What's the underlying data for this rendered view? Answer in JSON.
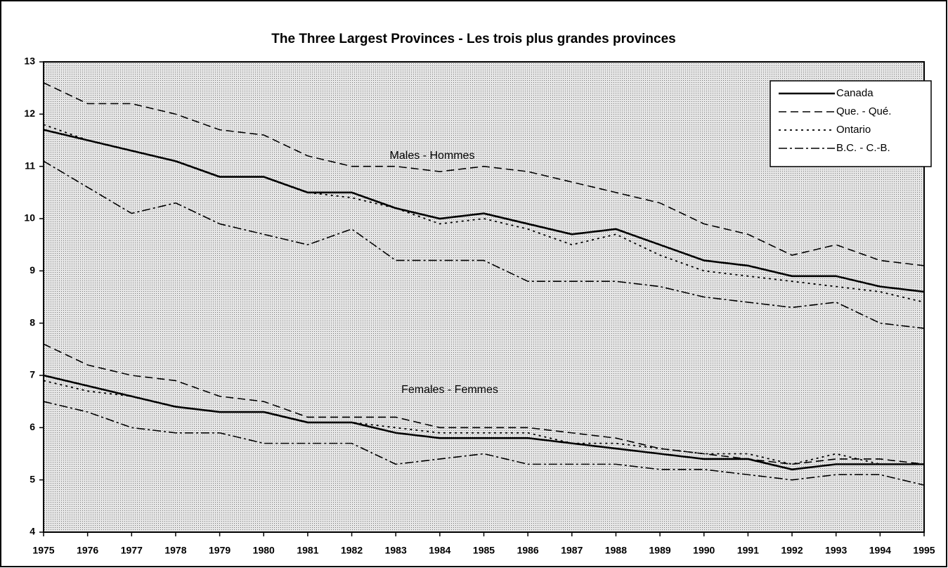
{
  "chart_data": {
    "type": "line",
    "title": "The Three Largest Provinces - Les trois plus grandes provinces",
    "annotations": [
      "Males - Hommes",
      "Females - Femmes"
    ],
    "x": [
      1975,
      1976,
      1977,
      1978,
      1979,
      1980,
      1981,
      1982,
      1983,
      1984,
      1985,
      1986,
      1987,
      1988,
      1989,
      1990,
      1991,
      1992,
      1993,
      1994,
      1995
    ],
    "xlim": [
      1975,
      1995
    ],
    "xticks": [
      1975,
      1976,
      1977,
      1978,
      1979,
      1980,
      1981,
      1982,
      1983,
      1984,
      1985,
      1986,
      1987,
      1988,
      1989,
      1990,
      1991,
      1992,
      1993,
      1994,
      1995
    ],
    "ylim": [
      4,
      13
    ],
    "yticks": [
      4,
      5,
      6,
      7,
      8,
      9,
      10,
      11,
      12,
      13
    ],
    "grid": false,
    "legend": "upper right",
    "series": [
      {
        "name": "Canada",
        "color": "#000000",
        "line_style": "solid",
        "males": [
          11.7,
          11.5,
          11.3,
          11.1,
          10.8,
          10.8,
          10.5,
          10.5,
          10.2,
          10.0,
          10.1,
          9.9,
          9.7,
          9.8,
          9.5,
          9.2,
          9.1,
          8.9,
          8.9,
          8.7,
          8.6
        ],
        "females": [
          7.0,
          6.8,
          6.6,
          6.4,
          6.3,
          6.3,
          6.1,
          6.1,
          5.9,
          5.8,
          5.8,
          5.8,
          5.7,
          5.6,
          5.5,
          5.4,
          5.4,
          5.2,
          5.3,
          5.3,
          5.3
        ]
      },
      {
        "name": "Que. - Qué.",
        "color": "#000000",
        "line_style": "dashed",
        "males": [
          12.6,
          12.2,
          12.2,
          12.0,
          11.7,
          11.6,
          11.2,
          11.0,
          11.0,
          10.9,
          11.0,
          10.9,
          10.7,
          10.5,
          10.3,
          9.9,
          9.7,
          9.3,
          9.5,
          9.2,
          9.1
        ],
        "females": [
          7.6,
          7.2,
          7.0,
          6.9,
          6.6,
          6.5,
          6.2,
          6.2,
          6.2,
          6.0,
          6.0,
          6.0,
          5.9,
          5.8,
          5.6,
          5.5,
          5.4,
          5.3,
          5.4,
          5.4,
          5.3
        ]
      },
      {
        "name": "Ontario",
        "color": "#000000",
        "line_style": "dotted",
        "males": [
          11.8,
          11.5,
          11.3,
          11.1,
          10.8,
          10.8,
          10.5,
          10.4,
          10.2,
          9.9,
          10.0,
          9.8,
          9.5,
          9.7,
          9.3,
          9.0,
          8.9,
          8.8,
          8.7,
          8.6,
          8.4
        ],
        "females": [
          6.9,
          6.7,
          6.6,
          6.4,
          6.3,
          6.3,
          6.1,
          6.1,
          6.0,
          5.9,
          5.9,
          5.9,
          5.7,
          5.7,
          5.6,
          5.5,
          5.5,
          5.3,
          5.5,
          5.3,
          5.3
        ]
      },
      {
        "name": "B.C. - C.-B.",
        "color": "#000000",
        "line_style": "dashdot",
        "males": [
          11.1,
          10.6,
          10.1,
          10.3,
          9.9,
          9.7,
          9.5,
          9.8,
          9.2,
          9.2,
          9.2,
          8.8,
          8.8,
          8.8,
          8.7,
          8.5,
          8.4,
          8.3,
          8.4,
          8.0,
          7.9
        ],
        "females": [
          6.5,
          6.3,
          6.0,
          5.9,
          5.9,
          5.7,
          5.7,
          5.7,
          5.3,
          5.4,
          5.5,
          5.3,
          5.3,
          5.3,
          5.2,
          5.2,
          5.1,
          5.0,
          5.1,
          5.1,
          4.9
        ]
      }
    ]
  }
}
